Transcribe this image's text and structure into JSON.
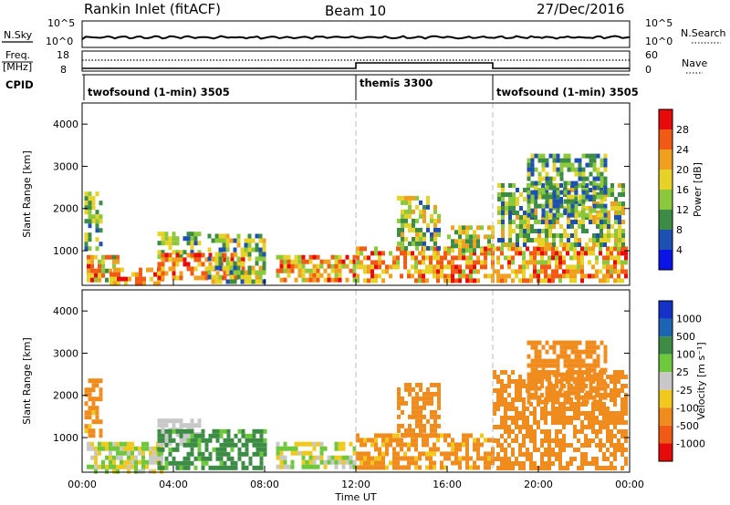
{
  "header": {
    "title": "Rankin Inlet (fitACF)",
    "beam": "Beam 10",
    "date": "27/Dec/2016"
  },
  "top_panels": {
    "nsky_label": "N.Sky",
    "nsearch_label": "N.Search",
    "freq_label_1": "Freq.",
    "freq_label_2": "[MHz]",
    "nave_label": "Nave",
    "cpid_label": "CPID",
    "nsky_ticks": [
      "10^5",
      "10^0"
    ],
    "nsearch_ticks": [
      "10^5",
      "10^0"
    ],
    "freq_ticks": [
      "18",
      "8"
    ],
    "nave_ticks": [
      "60",
      "0"
    ]
  },
  "cpid_segments": [
    {
      "label": "twofsound (1-min) 3505",
      "start_hour": 0
    },
    {
      "label": "themis 3300",
      "start_hour": 12
    },
    {
      "label": "twofsound (1-min) 3505",
      "start_hour": 18
    }
  ],
  "x_axis": {
    "label": "Time UT",
    "ticks": [
      "00:00",
      "04:00",
      "08:00",
      "12:00",
      "16:00",
      "20:00",
      "00:00"
    ],
    "range_hours": [
      0,
      24
    ]
  },
  "y_axis": {
    "label": "Slant Range [km]",
    "ticks": [
      "1000",
      "2000",
      "3000",
      "4000"
    ],
    "range_km": [
      180,
      4500
    ]
  },
  "power_colorbar": {
    "label": "Power [dB]",
    "ticks": [
      "4",
      "8",
      "12",
      "16",
      "20",
      "24",
      "28"
    ],
    "range": [
      0,
      32
    ],
    "colors": [
      "#0a14e6",
      "#1e50b4",
      "#3c8c46",
      "#8cc83c",
      "#e6d228",
      "#f0a01e",
      "#f05a14",
      "#e60a0a"
    ]
  },
  "velocity_colorbar": {
    "label": "Velocity [m s⁻¹]",
    "ticks": [
      "1000",
      "500",
      "100",
      "25",
      "-25",
      "-100",
      "-500",
      "-1000"
    ],
    "colors": [
      "#1432c8",
      "#1e64b4",
      "#3c8c46",
      "#6ec83c",
      "#c8c8c8",
      "#f0c81e",
      "#f08c1e",
      "#f05a14",
      "#e60a0a"
    ]
  },
  "chart_data": {
    "type": "heatmap",
    "panels": [
      {
        "name": "power",
        "echo_regions": [
          {
            "t0": 0.1,
            "t1": 0.9,
            "r0": 1100,
            "r1": 2400,
            "v0": 6,
            "v1": 20
          },
          {
            "t0": 0.2,
            "t1": 1.6,
            "r0": 300,
            "r1": 900,
            "v0": 10,
            "v1": 30
          },
          {
            "t0": 1.2,
            "t1": 3.5,
            "r0": 250,
            "r1": 600,
            "v0": 16,
            "v1": 30
          },
          {
            "t0": 3.3,
            "t1": 5.2,
            "r0": 900,
            "r1": 1450,
            "v0": 6,
            "v1": 20
          },
          {
            "t0": 3.3,
            "t1": 7.0,
            "r0": 350,
            "r1": 950,
            "v0": 18,
            "v1": 30
          },
          {
            "t0": 5.5,
            "t1": 8.0,
            "r0": 300,
            "r1": 1400,
            "v0": 6,
            "v1": 22
          },
          {
            "t0": 8.5,
            "t1": 12.0,
            "r0": 300,
            "r1": 900,
            "v0": 12,
            "v1": 30
          },
          {
            "t0": 12.0,
            "t1": 18.0,
            "r0": 300,
            "r1": 1100,
            "v0": 14,
            "v1": 30
          },
          {
            "t0": 13.8,
            "t1": 15.6,
            "r0": 1100,
            "r1": 2300,
            "v0": 6,
            "v1": 22
          },
          {
            "t0": 16.0,
            "t1": 18.0,
            "r0": 1000,
            "r1": 1600,
            "v0": 8,
            "v1": 24
          },
          {
            "t0": 18.0,
            "t1": 23.9,
            "r0": 300,
            "r1": 1100,
            "v0": 14,
            "v1": 30
          },
          {
            "t0": 18.2,
            "t1": 23.8,
            "r0": 1100,
            "r1": 2600,
            "v0": 6,
            "v1": 22
          },
          {
            "t0": 19.5,
            "t1": 23.0,
            "r0": 1800,
            "r1": 3300,
            "v0": 4,
            "v1": 18
          }
        ]
      },
      {
        "name": "velocity",
        "echo_regions": [
          {
            "t0": 0.1,
            "t1": 0.9,
            "r0": 1100,
            "r1": 2400,
            "v0": -500,
            "v1": -25
          },
          {
            "t0": 0.2,
            "t1": 3.5,
            "r0": 250,
            "r1": 900,
            "v0": -100,
            "v1": 100
          },
          {
            "t0": 3.3,
            "t1": 5.2,
            "r0": 900,
            "r1": 1450,
            "v0": -25,
            "v1": 25
          },
          {
            "t0": 3.3,
            "t1": 8.0,
            "r0": 300,
            "r1": 1200,
            "v0": 25,
            "v1": 500
          },
          {
            "t0": 8.5,
            "t1": 12.0,
            "r0": 300,
            "r1": 900,
            "v0": -100,
            "v1": 100
          },
          {
            "t0": 12.0,
            "t1": 18.0,
            "r0": 300,
            "r1": 1100,
            "v0": -500,
            "v1": -25
          },
          {
            "t0": 13.8,
            "t1": 15.6,
            "r0": 1100,
            "r1": 2300,
            "v0": -500,
            "v1": -100
          },
          {
            "t0": 18.0,
            "t1": 23.9,
            "r0": 300,
            "r1": 2600,
            "v0": -500,
            "v1": -100
          },
          {
            "t0": 19.5,
            "t1": 23.0,
            "r0": 1800,
            "r1": 3300,
            "v0": -500,
            "v1": -100
          }
        ]
      }
    ],
    "x_range_hours": [
      0,
      24
    ],
    "y_range_km": [
      180,
      4500
    ],
    "grid": false
  }
}
